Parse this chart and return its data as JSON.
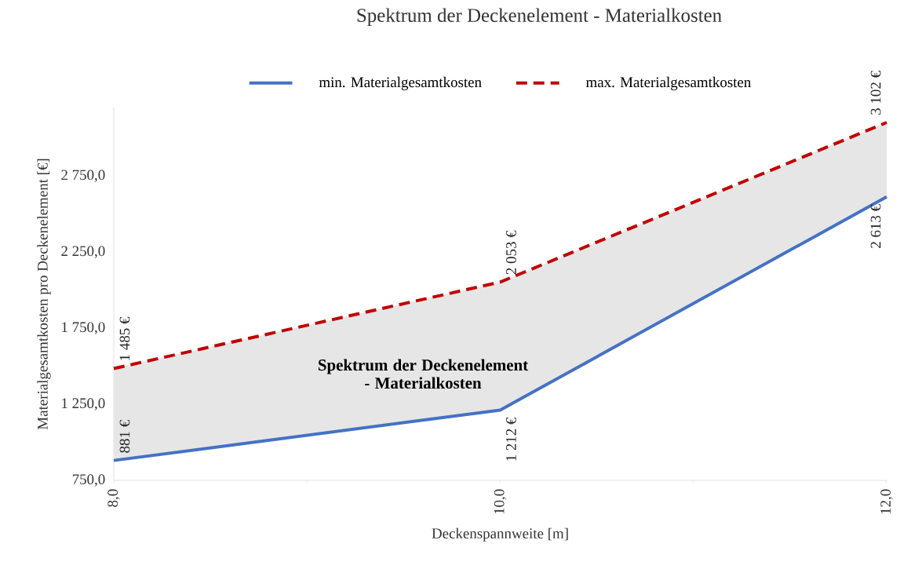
{
  "chart_data": {
    "type": "line",
    "title": "Spektrum der Deckenelement - Materialkosten",
    "xlabel": "Deckenspannweite [m]",
    "ylabel": "Materialgesamtkosten pro Deckenelement [€]",
    "x": [
      8,
      10,
      12
    ],
    "series": [
      {
        "name": "min. Materialgesamtkosten",
        "color": "#4472c4",
        "line_style": "solid",
        "values": [
          881,
          1212,
          2613
        ],
        "value_labels": [
          "881 €",
          "1 212 €",
          "2 613 €"
        ],
        "lower": [
          881,
          1212,
          2613
        ],
        "upper": [
          1485,
          2053,
          3102
        ]
      },
      {
        "name": "max. Materialgesamtkosten",
        "color": "#c00000",
        "line_style": "dashed",
        "values": [
          1485,
          2053,
          3102
        ],
        "value_labels": [
          "1 485 €",
          "2 053 €",
          "3 102 €"
        ]
      }
    ],
    "xlim": [
      8,
      12
    ],
    "xticks": [
      {
        "value": 8,
        "label": "8,0"
      },
      {
        "value": 9,
        "label": null
      },
      {
        "value": 10,
        "label": "10,0"
      },
      {
        "value": 11,
        "label": null
      },
      {
        "value": 12,
        "label": "12,0"
      }
    ],
    "ylim": [
      750,
      3200
    ],
    "yticks": [
      {
        "value": 750,
        "label": "750,0"
      },
      {
        "value": 1250,
        "label": "1 250,0"
      },
      {
        "value": 1750,
        "label": "1 750,0"
      },
      {
        "value": 2250,
        "label": "2 250,0"
      },
      {
        "value": 2750,
        "label": "2 750,0"
      }
    ],
    "annotations": [
      "Spektrum der Deckenelement - Materialkosten"
    ],
    "legend": "top",
    "grid": false,
    "marker": "none"
  }
}
